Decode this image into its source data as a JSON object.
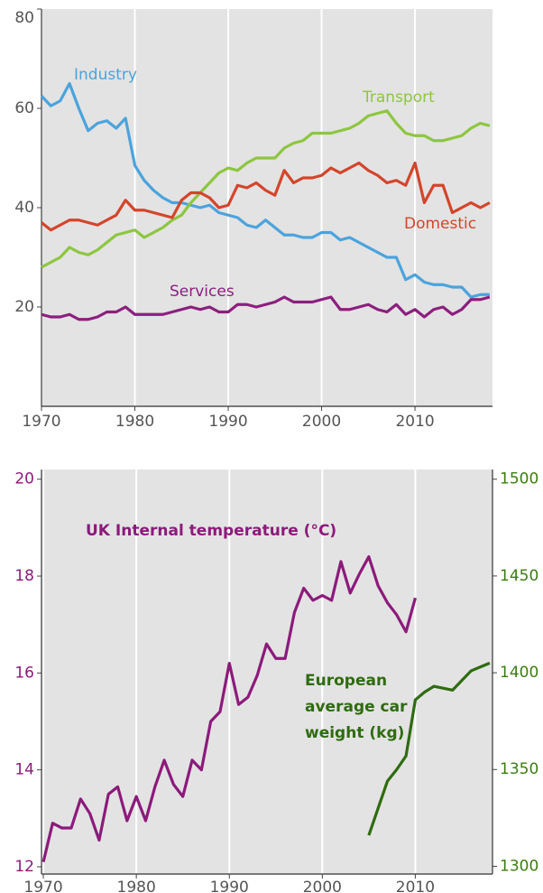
{
  "chart_data": [
    {
      "type": "line",
      "x": [
        1970,
        1971,
        1972,
        1973,
        1974,
        1975,
        1976,
        1977,
        1978,
        1979,
        1980,
        1981,
        1982,
        1983,
        1984,
        1985,
        1986,
        1987,
        1988,
        1989,
        1990,
        1991,
        1992,
        1993,
        1994,
        1995,
        1996,
        1997,
        1998,
        1999,
        2000,
        2001,
        2002,
        2003,
        2004,
        2005,
        2006,
        2007,
        2008,
        2009,
        2010,
        2011,
        2012,
        2013,
        2014,
        2015,
        2016,
        2017,
        2018
      ],
      "xlim": [
        1970,
        2018.3
      ],
      "xticks": [
        1970,
        1980,
        1990,
        2000,
        2010
      ],
      "ylim": [
        0,
        80
      ],
      "yticks": [
        20,
        40,
        60,
        80
      ],
      "grid": true,
      "series": [
        {
          "name": "Industry",
          "color": "#4ba3dd",
          "values": [
            62.5,
            60.5,
            61.5,
            65,
            60,
            55.5,
            57,
            57.5,
            56,
            58,
            48.5,
            45.5,
            43.5,
            42,
            41,
            41,
            40.5,
            40,
            40.5,
            39,
            38.5,
            38,
            36.5,
            36,
            37.5,
            36,
            34.5,
            34.5,
            34,
            34,
            35,
            35,
            33.5,
            34,
            33,
            32,
            31,
            30,
            30,
            25.5,
            26.5,
            25,
            24.5,
            24.5,
            24,
            24,
            22,
            22.5,
            22.5
          ]
        },
        {
          "name": "Transport",
          "color": "#8dc63f",
          "values": [
            28,
            29,
            30,
            32,
            31,
            30.5,
            31.5,
            33,
            34.5,
            35,
            35.5,
            34,
            35,
            36,
            37.5,
            38.5,
            41,
            43,
            45,
            47,
            48,
            47.5,
            49,
            50,
            50,
            50,
            52,
            53,
            53.5,
            55,
            55,
            55,
            55.5,
            56,
            57,
            58.5,
            59,
            59.5,
            57,
            55,
            54.5,
            54.5,
            53.5,
            53.5,
            54,
            54.5,
            56,
            57,
            56.5
          ]
        },
        {
          "name": "Domestic",
          "color": "#d3452b",
          "values": [
            37,
            35.5,
            36.5,
            37.5,
            37.5,
            37,
            36.5,
            37.5,
            38.5,
            41.5,
            39.5,
            39.5,
            39,
            38.5,
            38,
            41.5,
            43,
            43,
            42,
            40,
            40.5,
            44.5,
            44,
            45,
            43.5,
            42.5,
            47.5,
            45,
            46,
            46,
            46.5,
            48,
            47,
            48,
            49,
            47.5,
            46.5,
            45,
            45.5,
            44.5,
            49,
            41,
            44.5,
            44.5,
            39,
            40,
            41,
            40,
            41
          ]
        },
        {
          "name": "Services",
          "color": "#8c1f7e",
          "values": [
            18.5,
            18,
            18,
            18.5,
            17.5,
            17.5,
            18,
            19,
            19,
            20,
            18.5,
            18.5,
            18.5,
            18.5,
            19,
            19.5,
            20,
            19.5,
            20,
            19,
            19,
            20.5,
            20.5,
            20,
            20.5,
            21,
            22,
            21,
            21,
            21,
            21.5,
            22,
            19.5,
            19.5,
            20,
            20.5,
            19.5,
            19,
            20.5,
            18.5,
            19.5,
            18,
            19.5,
            20,
            18.5,
            19.5,
            21.5,
            21.5,
            22
          ]
        }
      ]
    },
    {
      "type": "line",
      "x": [
        1970,
        1971,
        1972,
        1973,
        1974,
        1975,
        1976,
        1977,
        1978,
        1979,
        1980,
        1981,
        1982,
        1983,
        1984,
        1985,
        1986,
        1987,
        1988,
        1989,
        1990,
        1991,
        1992,
        1993,
        1994,
        1995,
        1996,
        1997,
        1998,
        1999,
        2000,
        2001,
        2002,
        2003,
        2004,
        2005,
        2006,
        2007,
        2008,
        2009,
        2010,
        2011,
        2012,
        2013,
        2014,
        2015,
        2016,
        2017,
        2018
      ],
      "xlim": [
        1969.8,
        2018.3
      ],
      "xticks": [
        1970,
        1980,
        1990,
        2000,
        2010
      ],
      "ylim": [
        11.85,
        20.2
      ],
      "yticks": [
        12,
        14,
        16,
        18,
        20
      ],
      "y2lim": [
        1296,
        1505
      ],
      "y2ticks": [
        1300,
        1350,
        1400,
        1450,
        1500
      ],
      "grid": true,
      "series": [
        {
          "name": "UK Internal temperature (°C)",
          "color": "#8c1a7b",
          "values": [
            12.1,
            12.9,
            12.8,
            12.8,
            13.4,
            13.1,
            12.55,
            13.5,
            13.65,
            12.95,
            13.45,
            12.95,
            13.65,
            14.2,
            13.7,
            13.45,
            14.2,
            14.0,
            15.0,
            15.2,
            16.2,
            15.35,
            15.5,
            15.95,
            16.6,
            16.3,
            16.3,
            17.25,
            17.75,
            17.5,
            17.6,
            17.5,
            18.3,
            17.65,
            18.05,
            18.4,
            17.8,
            17.45,
            17.2,
            16.85,
            17.55,
            null,
            null,
            null,
            null,
            null,
            null,
            null,
            null
          ]
        },
        {
          "name": "European average car weight (kg)",
          "color": "#2f6b10",
          "axis": "y2",
          "values": [
            null,
            null,
            null,
            null,
            null,
            null,
            null,
            null,
            null,
            null,
            null,
            null,
            null,
            null,
            null,
            null,
            null,
            null,
            null,
            null,
            null,
            null,
            null,
            null,
            null,
            null,
            null,
            null,
            null,
            null,
            null,
            null,
            null,
            null,
            null,
            1316,
            1330,
            1344,
            1350,
            1357,
            1386,
            1390,
            1393,
            1392,
            1391,
            1396,
            1401,
            1403,
            1405
          ]
        }
      ]
    }
  ]
}
